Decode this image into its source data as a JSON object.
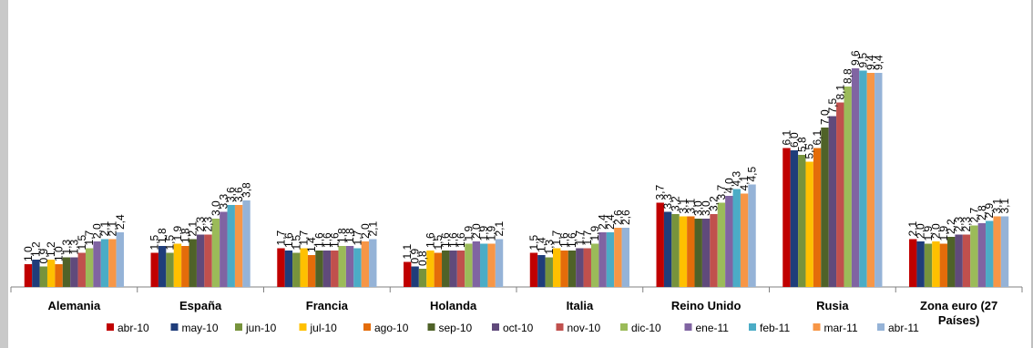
{
  "chart_data": {
    "type": "bar",
    "title": "",
    "xlabel": "",
    "ylabel": "",
    "ylim": [
      0,
      10
    ],
    "grid": false,
    "legend_position": "bottom",
    "categories": [
      [
        "Alemania"
      ],
      [
        "España"
      ],
      [
        "Francia"
      ],
      [
        "Holanda"
      ],
      [
        "Italia"
      ],
      [
        "Reino Unido"
      ],
      [
        "Rusia"
      ],
      [
        "Zona euro (27",
        "Países)"
      ]
    ],
    "series": [
      {
        "name": "abr-10",
        "color": "#C00000",
        "values": [
          1.0,
          1.5,
          1.7,
          1.1,
          1.5,
          3.7,
          6.1,
          2.1
        ]
      },
      {
        "name": "may-10",
        "color": "#1F3D7A",
        "values": [
          1.2,
          1.8,
          1.6,
          0.9,
          1.4,
          3.3,
          6.0,
          2.0
        ]
      },
      {
        "name": "jun-10",
        "color": "#77933C",
        "values": [
          0.9,
          1.5,
          1.5,
          0.8,
          1.3,
          3.2,
          5.8,
          1.9
        ]
      },
      {
        "name": "jul-10",
        "color": "#FFC000",
        "values": [
          1.2,
          1.9,
          1.7,
          1.6,
          1.7,
          3.1,
          5.5,
          2.0
        ]
      },
      {
        "name": "ago-10",
        "color": "#E46C0A",
        "values": [
          1.0,
          1.8,
          1.4,
          1.5,
          1.6,
          3.1,
          6.1,
          1.9
        ]
      },
      {
        "name": "sep-10",
        "color": "#4F6228",
        "values": [
          1.3,
          2.1,
          1.6,
          1.6,
          1.6,
          3.0,
          7.0,
          2.2
        ]
      },
      {
        "name": "oct-10",
        "color": "#604A7B",
        "values": [
          1.3,
          2.3,
          1.6,
          1.6,
          1.7,
          3.0,
          7.5,
          2.3
        ]
      },
      {
        "name": "nov-10",
        "color": "#C0504D",
        "values": [
          1.5,
          2.3,
          1.6,
          1.6,
          1.7,
          3.2,
          8.1,
          2.3
        ]
      },
      {
        "name": "dic-10",
        "color": "#9BBB59",
        "values": [
          1.7,
          3.0,
          1.8,
          1.9,
          1.9,
          3.7,
          8.8,
          2.7
        ]
      },
      {
        "name": "ene-11",
        "color": "#8064A2",
        "values": [
          2.0,
          3.3,
          1.8,
          2.0,
          2.4,
          4.0,
          9.6,
          2.8
        ]
      },
      {
        "name": "feb-11",
        "color": "#4BACC6",
        "values": [
          2.1,
          3.6,
          1.7,
          1.9,
          2.4,
          4.3,
          9.5,
          2.9
        ]
      },
      {
        "name": "mar-11",
        "color": "#F79646",
        "values": [
          2.1,
          3.6,
          2.0,
          1.9,
          2.6,
          4.1,
          9.4,
          3.1
        ]
      },
      {
        "name": "abr-11",
        "color": "#95B3D7",
        "values": [
          2.4,
          3.8,
          2.1,
          2.1,
          2.6,
          4.5,
          9.4,
          3.1
        ]
      }
    ]
  }
}
